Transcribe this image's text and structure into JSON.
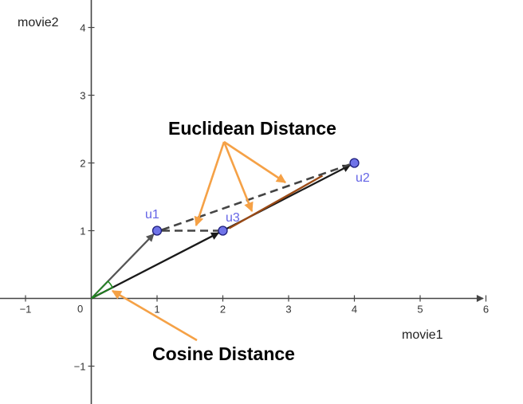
{
  "diagram": {
    "axes": {
      "x_label": "movie1",
      "y_label": "movie2",
      "origin_label": "0",
      "x_ticks": [
        -1,
        1,
        2,
        3,
        4,
        5,
        6
      ],
      "y_ticks": [
        -1,
        1,
        2,
        3,
        4
      ],
      "x_range": [
        -1.38,
        6.55
      ],
      "y_range": [
        -1.55,
        4.4
      ]
    },
    "points": [
      {
        "label": "u1",
        "x": 1,
        "y": 1
      },
      {
        "label": "u2",
        "x": 4,
        "y": 2
      },
      {
        "label": "u3",
        "x": 2,
        "y": 1
      }
    ],
    "annotations": {
      "euclidean": "Euclidean Distance",
      "cosine": "Cosine Distance"
    },
    "colors": {
      "point_fill": "#6f73e8",
      "point_stroke": "#1e1e7a",
      "point_label": "#6464e6",
      "arrow_orange": "#f5a146",
      "vector_gray": "#555555",
      "vector_dark": "#1a1a1a",
      "dashed": "#444444",
      "angle_green": "#1f8a1f",
      "highlight_brown": "#9a4a16"
    }
  }
}
